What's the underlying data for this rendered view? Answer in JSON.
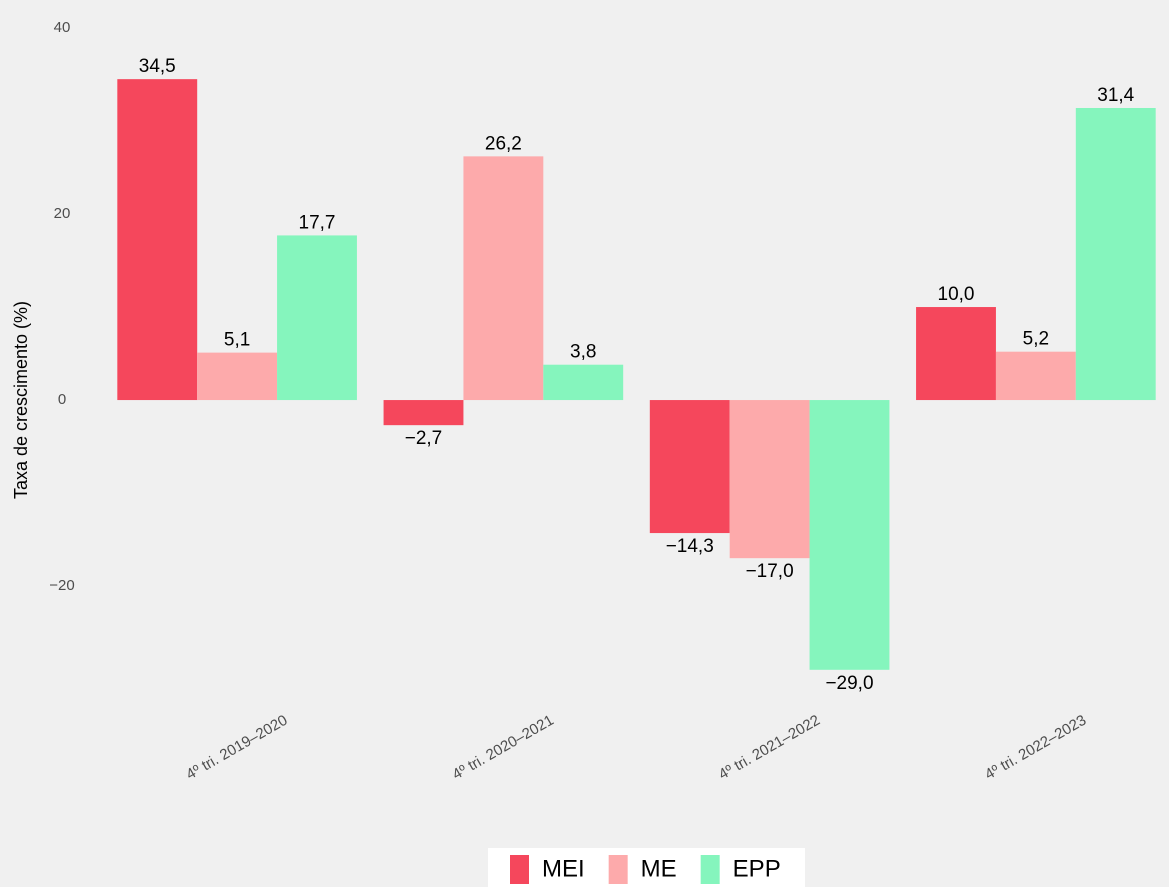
{
  "chart_data": {
    "type": "bar",
    "y_label": "Taxa de crescimento (%)",
    "categories": [
      "4º tri. 2019–2020",
      "4º tri. 2020–2021",
      "4º tri. 2021–2022",
      "4º tri. 2022–2023"
    ],
    "series": [
      {
        "name": "MEI",
        "color": "#f5475c",
        "values": [
          34.5,
          -2.7,
          -14.3,
          10.0
        ],
        "value_labels": [
          "34,5",
          "−2,7",
          "−14,3",
          "10,0"
        ]
      },
      {
        "name": "ME",
        "color": "#fdaaab",
        "values": [
          5.1,
          26.2,
          -17.0,
          5.2
        ],
        "value_labels": [
          "5,1",
          "26,2",
          "−17,0",
          "5,2"
        ]
      },
      {
        "name": "EPP",
        "color": "#85f5bd",
        "values": [
          17.7,
          3.8,
          -29.0,
          31.4
        ],
        "value_labels": [
          "17,7",
          "3,8",
          "−29,0",
          "31,4"
        ]
      }
    ],
    "ylim": [
      -33,
      40
    ],
    "yticks": [
      {
        "value": -20,
        "label": "−20"
      },
      0,
      20,
      40
    ],
    "grid": false,
    "legend": "bottom"
  }
}
